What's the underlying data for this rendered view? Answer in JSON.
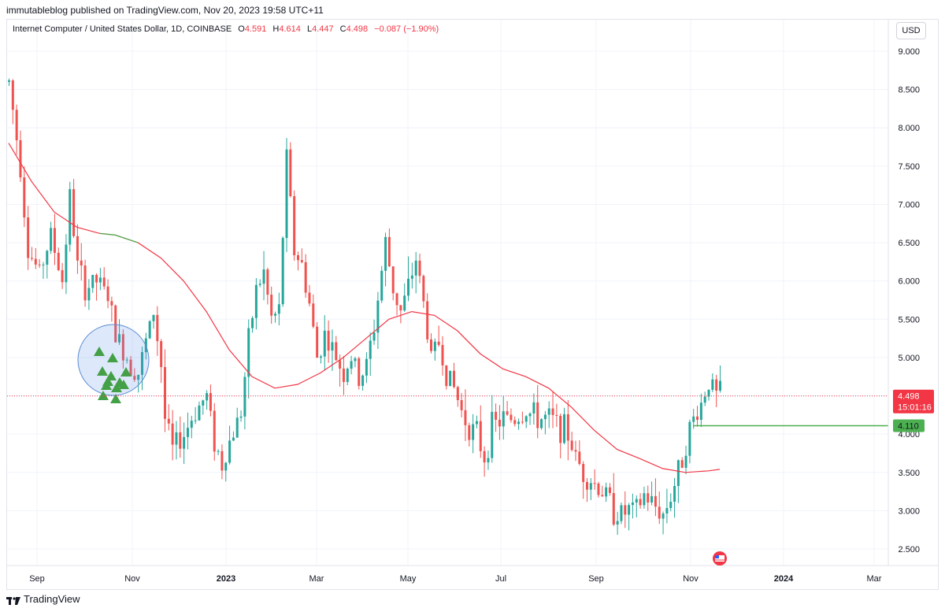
{
  "header": {
    "text": "immutableblog published on TradingView.com, Nov 20, 2023 19:58 UTC+11"
  },
  "legend": {
    "symbol": "Internet Computer / United States Dollar, 1D, COINBASE",
    "open_label": "O",
    "open": "4.591",
    "high_label": "H",
    "high": "4.614",
    "low_label": "L",
    "low": "4.447",
    "close_label": "C",
    "close": "4.498",
    "change": "−0.087 (−1.90%)"
  },
  "currency": "USD",
  "footer": {
    "brand": "TradingView"
  },
  "colors": {
    "up": "#26a69a",
    "down": "#ef5350",
    "ma_down": "#f23645",
    "ma_up": "#4caf50",
    "level": "#4caf50",
    "price_tag": "#f23645",
    "grid": "#f0f3fa"
  },
  "chart_data": {
    "type": "candlestick",
    "x_ticks": [
      "Sep",
      "Nov",
      "2023",
      "Mar",
      "May",
      "Jul",
      "Sep",
      "Nov",
      "2024",
      "Mar"
    ],
    "y_ticks": [
      "9.000",
      "8.500",
      "8.000",
      "7.500",
      "7.000",
      "6.500",
      "6.000",
      "5.500",
      "5.000",
      "4.500",
      "4.000",
      "3.500",
      "3.000",
      "2.500"
    ],
    "ylim": [
      2.25,
      9.2
    ],
    "last_price": {
      "value": 4.498,
      "label": "4.498",
      "countdown": "15:01:16"
    },
    "level": {
      "value": 4.11,
      "label": "4.110"
    },
    "price_path": [
      [
        0,
        8.6
      ],
      [
        3,
        7.5
      ],
      [
        5,
        6.4
      ],
      [
        8,
        6.1
      ],
      [
        11,
        6.6
      ],
      [
        14,
        6.0
      ],
      [
        16,
        7.1
      ],
      [
        18,
        6.2
      ],
      [
        20,
        5.9
      ],
      [
        23,
        6.0
      ],
      [
        26,
        5.8
      ],
      [
        28,
        5.3
      ],
      [
        30,
        5.1
      ],
      [
        32,
        4.9
      ],
      [
        34,
        4.8
      ],
      [
        36,
        5.2
      ],
      [
        38,
        5.6
      ],
      [
        40,
        4.9
      ],
      [
        41,
        4.2
      ],
      [
        43,
        3.8
      ],
      [
        46,
        4.0
      ],
      [
        49,
        4.3
      ],
      [
        52,
        4.5
      ],
      [
        54,
        3.9
      ],
      [
        56,
        3.6
      ],
      [
        58,
        3.9
      ],
      [
        61,
        4.3
      ],
      [
        63,
        5.2
      ],
      [
        65,
        5.9
      ],
      [
        67,
        6.1
      ],
      [
        69,
        5.5
      ],
      [
        71,
        5.6
      ],
      [
        73,
        7.6
      ],
      [
        75,
        6.4
      ],
      [
        77,
        6.2
      ],
      [
        79,
        5.7
      ],
      [
        81,
        5.0
      ],
      [
        83,
        5.3
      ],
      [
        86,
        5.0
      ],
      [
        88,
        4.8
      ],
      [
        90,
        5.0
      ],
      [
        92,
        4.7
      ],
      [
        94,
        4.9
      ],
      [
        96,
        5.4
      ],
      [
        99,
        6.5
      ],
      [
        101,
        5.9
      ],
      [
        103,
        5.6
      ],
      [
        105,
        5.9
      ],
      [
        107,
        6.3
      ],
      [
        109,
        5.7
      ],
      [
        111,
        5.0
      ],
      [
        113,
        5.2
      ],
      [
        115,
        4.8
      ],
      [
        117,
        4.6
      ],
      [
        119,
        4.3
      ],
      [
        121,
        4.1
      ],
      [
        123,
        4.0
      ],
      [
        125,
        3.7
      ],
      [
        127,
        4.1
      ],
      [
        130,
        4.2
      ],
      [
        133,
        4.2
      ],
      [
        136,
        4.3
      ],
      [
        139,
        4.2
      ],
      [
        142,
        4.2
      ],
      [
        145,
        4.1
      ],
      [
        147,
        4.0
      ],
      [
        149,
        3.7
      ],
      [
        151,
        3.5
      ],
      [
        153,
        3.4
      ],
      [
        155,
        3.3
      ],
      [
        157,
        3.2
      ],
      [
        159,
        3.0
      ],
      [
        161,
        2.95
      ],
      [
        163,
        3.0
      ],
      [
        165,
        3.0
      ],
      [
        167,
        3.2
      ],
      [
        169,
        3.1
      ],
      [
        171,
        3.0
      ],
      [
        172,
        2.95
      ],
      [
        174,
        3.2
      ],
      [
        176,
        3.5
      ],
      [
        178,
        3.9
      ],
      [
        180,
        4.2
      ],
      [
        182,
        4.4
      ],
      [
        184,
        4.7
      ],
      [
        186,
        4.5
      ],
      [
        187,
        4.55
      ]
    ],
    "moving_average": [
      [
        0,
        7.8
      ],
      [
        6,
        7.3
      ],
      [
        12,
        6.9
      ],
      [
        18,
        6.7
      ],
      [
        24,
        6.62
      ],
      [
        28,
        6.6
      ],
      [
        34,
        6.5
      ],
      [
        40,
        6.3
      ],
      [
        46,
        6.0
      ],
      [
        52,
        5.6
      ],
      [
        58,
        5.1
      ],
      [
        64,
        4.75
      ],
      [
        70,
        4.6
      ],
      [
        76,
        4.65
      ],
      [
        82,
        4.8
      ],
      [
        88,
        5.0
      ],
      [
        94,
        5.25
      ],
      [
        100,
        5.5
      ],
      [
        106,
        5.6
      ],
      [
        112,
        5.55
      ],
      [
        118,
        5.35
      ],
      [
        124,
        5.05
      ],
      [
        130,
        4.85
      ],
      [
        136,
        4.75
      ],
      [
        142,
        4.6
      ],
      [
        148,
        4.35
      ],
      [
        154,
        4.05
      ],
      [
        160,
        3.8
      ],
      [
        166,
        3.68
      ],
      [
        172,
        3.55
      ],
      [
        178,
        3.5
      ],
      [
        184,
        3.52
      ],
      [
        187,
        3.54
      ]
    ]
  }
}
